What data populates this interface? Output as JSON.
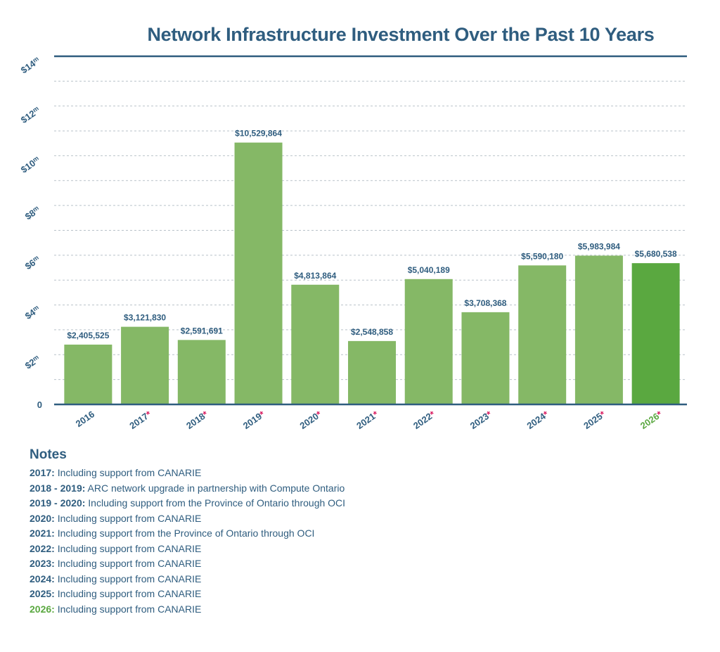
{
  "chart_data": {
    "type": "bar",
    "title": "Network Infrastructure Investment Over the Past 10 Years",
    "categories": [
      "2016",
      "2017",
      "2018",
      "2019",
      "2020",
      "2021",
      "2022",
      "2023",
      "2024",
      "2025",
      "2026"
    ],
    "values": [
      2405525,
      3121830,
      2591691,
      10529864,
      4813864,
      2548858,
      5040189,
      3708368,
      5590180,
      5983984,
      5680538
    ],
    "value_labels": [
      "$2,405,525",
      "$3,121,830",
      "$2,591,691",
      "$10,529,864",
      "$4,813,864",
      "$2,548,858",
      "$5,040,189",
      "$3,708,368",
      "$5,590,180",
      "$5,983,984",
      "$5,680,538"
    ],
    "asterisk": [
      false,
      true,
      true,
      true,
      true,
      true,
      true,
      true,
      true,
      true,
      true
    ],
    "highlight_index": 10,
    "ylim": [
      0,
      14000000
    ],
    "y_ticks": [
      {
        "value": 0,
        "label": "0",
        "suffix": ""
      },
      {
        "value": 2000000,
        "label": "$2",
        "suffix": "m"
      },
      {
        "value": 4000000,
        "label": "$4",
        "suffix": "m"
      },
      {
        "value": 6000000,
        "label": "$6",
        "suffix": "m"
      },
      {
        "value": 8000000,
        "label": "$8",
        "suffix": "m"
      },
      {
        "value": 10000000,
        "label": "$10",
        "suffix": "m"
      },
      {
        "value": 12000000,
        "label": "$12",
        "suffix": "m"
      },
      {
        "value": 14000000,
        "label": "$14",
        "suffix": "m"
      }
    ],
    "grid": true,
    "xlabel": "",
    "ylabel": ""
  },
  "colors": {
    "bar": "#85b866",
    "bar_highlight": "#5aa840",
    "text": "#2f5d7f",
    "asterisk": "#d81b60",
    "grid": "#b9c2c9",
    "axis": "#2f5d7f"
  },
  "notes": {
    "heading": "Notes",
    "items": [
      {
        "year": "2017:",
        "text": "Including support from CANARIE"
      },
      {
        "year": "2018 - 2019:",
        "text": "ARC network upgrade in partnership with Compute Ontario"
      },
      {
        "year": "2019 - 2020:",
        "text": "Including support from the Province of Ontario through OCI"
      },
      {
        "year": "2020:",
        "text": "Including support from CANARIE"
      },
      {
        "year": "2021:",
        "text": "Including support from the Province of Ontario through OCI"
      },
      {
        "year": "2022:",
        "text": "Including support from CANARIE"
      },
      {
        "year": "2023:",
        "text": "Including support from CANARIE"
      },
      {
        "year": "2024:",
        "text": "Including support from CANARIE"
      },
      {
        "year": "2025:",
        "text": "Including support from CANARIE"
      },
      {
        "year": "2026:",
        "text": "Including support from CANARIE",
        "highlight": true
      }
    ]
  }
}
